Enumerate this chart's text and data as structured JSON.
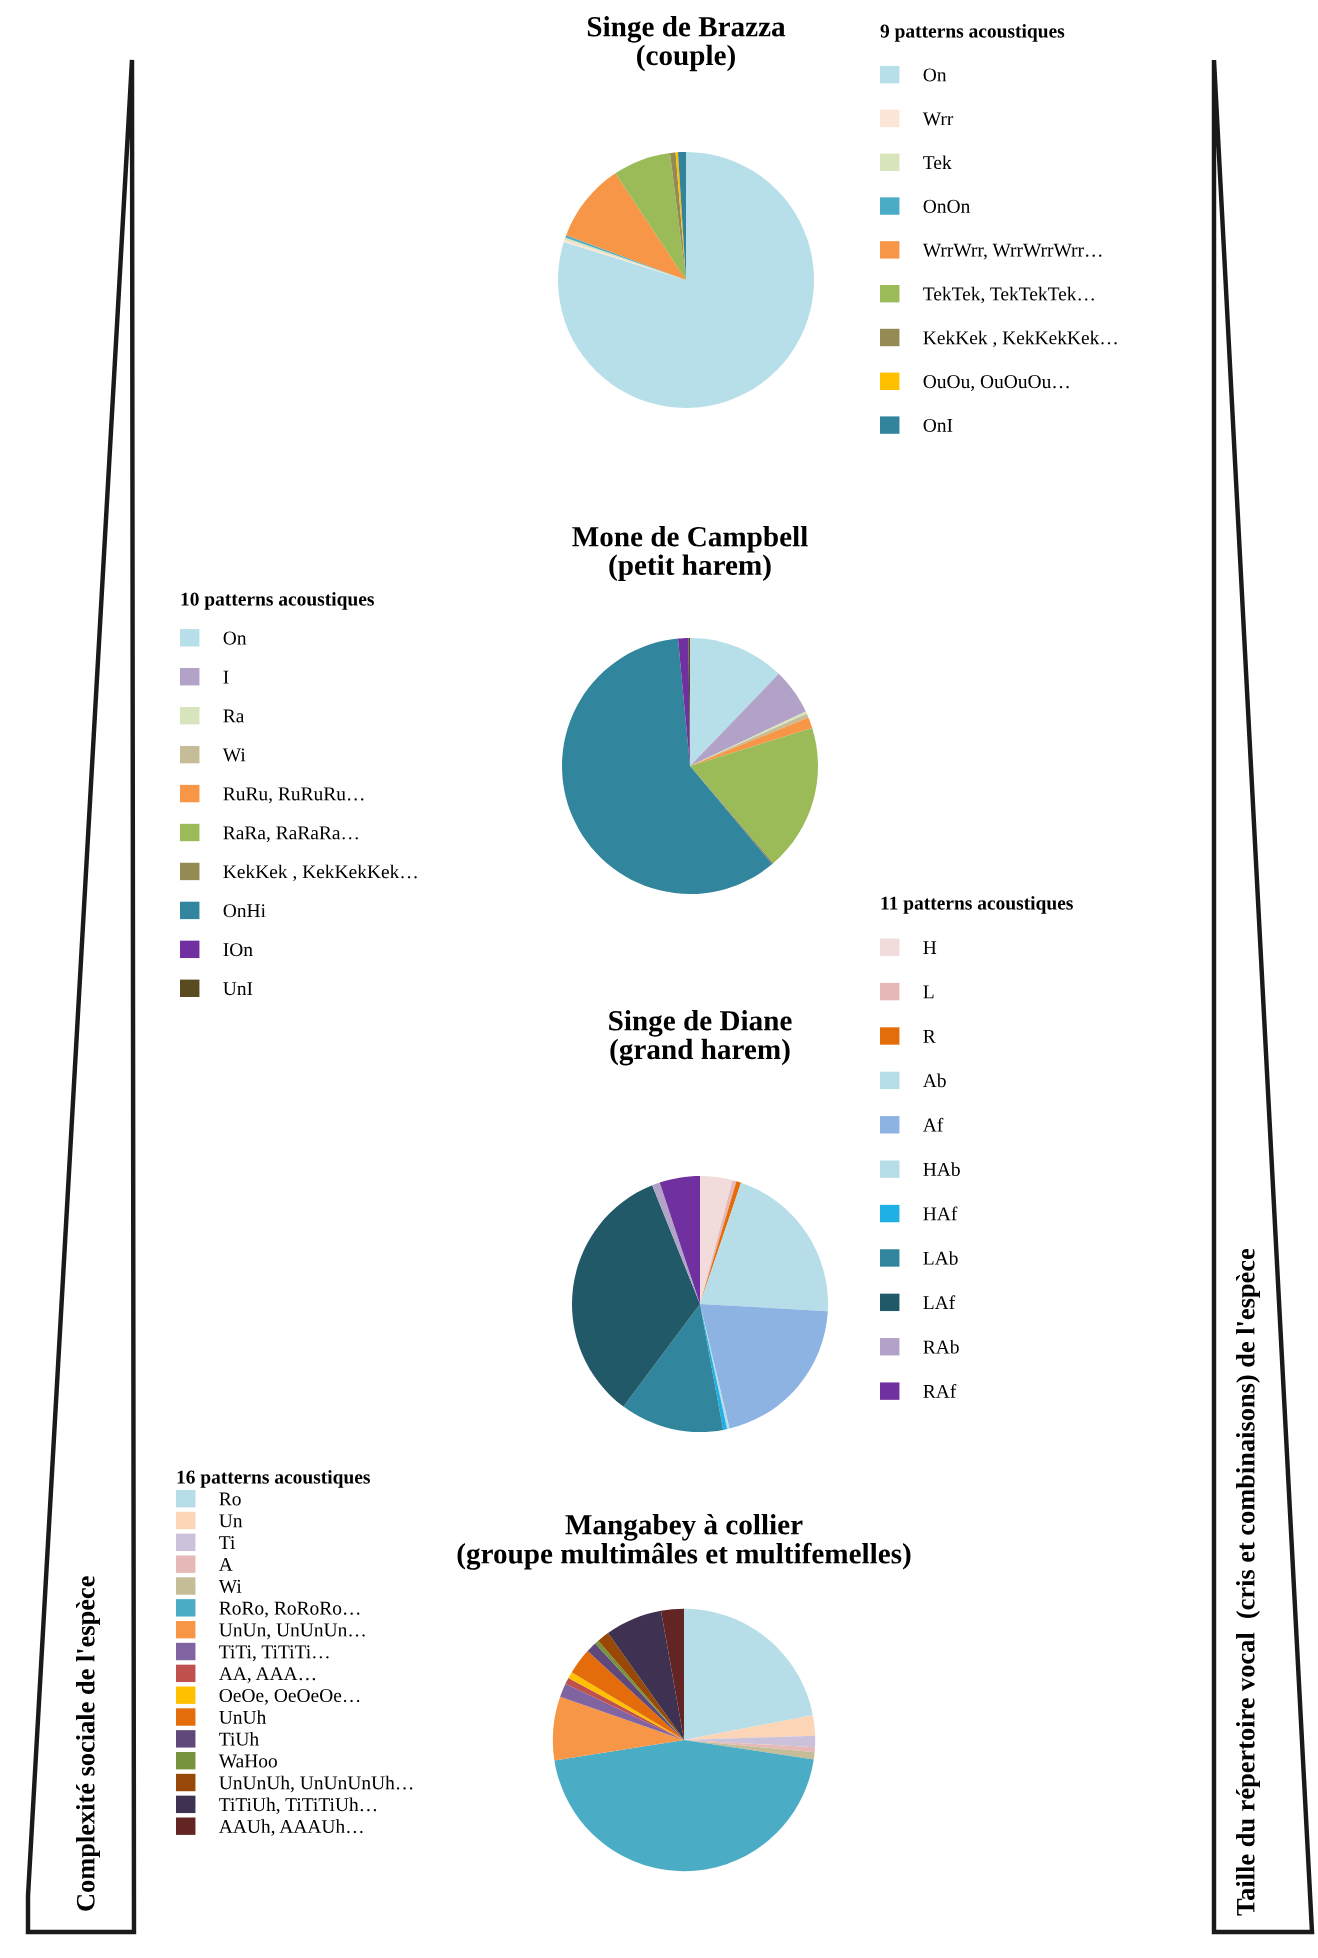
{
  "chart_data": [
    {
      "type": "pie",
      "title": "Singe de Brazza\n(couple)",
      "legend_title": "9 patterns acoustiques",
      "legend": "right",
      "categories": [
        "On",
        "Wrr",
        "Tek",
        "OnOn",
        "WrrWrr, WrrWrrWrr…",
        "TekTek, TekTekTek…",
        "KekKek , KekKekKek…",
        "OuOu, OuOuOu…",
        "OnI"
      ],
      "values": [
        79.8,
        0.3,
        0.3,
        0.3,
        10,
        7.3,
        0.7,
        0.3,
        1
      ],
      "colors": [
        "#b7dfea",
        "#fce4d6",
        "#d8e4bc",
        "#4bacc6",
        "#f79646",
        "#9bbb59",
        "#948a54",
        "#ffc000",
        "#31849b"
      ]
    },
    {
      "type": "pie",
      "title": "Mone de Campbell\n(petit harem)",
      "legend_title": "10 patterns acoustiques",
      "legend": "left",
      "categories": [
        "On",
        "I",
        "Ra",
        "Wi",
        "RuRu, RuRuRu…",
        "RaRa, RaRaRa…",
        "KekKek , KekKekKek…",
        "OnHi",
        "IOn",
        "UnI"
      ],
      "values": [
        12.2,
        5.8,
        0.3,
        0.5,
        1.4,
        18.5,
        0.2,
        59.6,
        1.3,
        0.2
      ],
      "colors": [
        "#b7dfea",
        "#b3a2c7",
        "#d8e4bc",
        "#c4bd97",
        "#f79646",
        "#9bbb59",
        "#948a54",
        "#31859c",
        "#7030a0",
        "#5a4a1f"
      ]
    },
    {
      "type": "pie",
      "title": "Singe de Diane\n(grand harem)",
      "legend_title": "11 patterns acoustiques",
      "legend": "right",
      "categories": [
        "H",
        "L",
        "R",
        "Ab",
        "Af",
        "HAb",
        "HAf",
        "LAb",
        "LAf",
        "RAb",
        "RAf"
      ],
      "values": [
        4.1,
        0.5,
        0.6,
        20.7,
        20.4,
        0.3,
        0.5,
        13.1,
        33.7,
        1.0,
        5.1
      ],
      "colors": [
        "#f2dcdb",
        "#e6b9b8",
        "#e46c0a",
        "#b7dee8",
        "#8db3e2",
        "#b7dee8",
        "#1fb1e6",
        "#31859c",
        "#215968",
        "#b3a2c7",
        "#7030a0"
      ]
    },
    {
      "type": "pie",
      "title": "Mangabey à collier\n(groupe multimâles et multifemelles)",
      "legend_title": "16 patterns acoustiques",
      "legend": "left",
      "categories": [
        "Ro",
        "Un",
        "Ti",
        "A",
        "Wi",
        "RoRo, RoRoRo…",
        "UnUn, UnUnUn…",
        "TiTi, TiTiTi…",
        "AA, AAA…",
        "OeOe, OeOeOe…",
        "UnUh",
        "TiUh",
        "WaHoo",
        "UnUnUh, UnUnUnUh…",
        "TiTiUh, TiTiTiUh…",
        "AAUh, AAAUh…"
      ],
      "values": [
        21.9,
        2.5,
        1.4,
        0.6,
        0.9,
        45,
        7.8,
        1.7,
        0.8,
        0.8,
        3.2,
        1.3,
        0.5,
        1.5,
        7,
        2.8
      ],
      "colors": [
        "#b7dee8",
        "#fbd5b5",
        "#ccc1da",
        "#e6b9b8",
        "#c4bd97",
        "#4bacc6",
        "#f79646",
        "#8064a2",
        "#c0504d",
        "#ffc000",
        "#e46c0a",
        "#60497a",
        "#77933c",
        "#984807",
        "#3f3151",
        "#632523"
      ],
      "annotations": [
        "Complexité sociale de l'espèce",
        "Taille du répertoire vocal  (cris et combinaisons) de l'espèce"
      ]
    }
  ]
}
